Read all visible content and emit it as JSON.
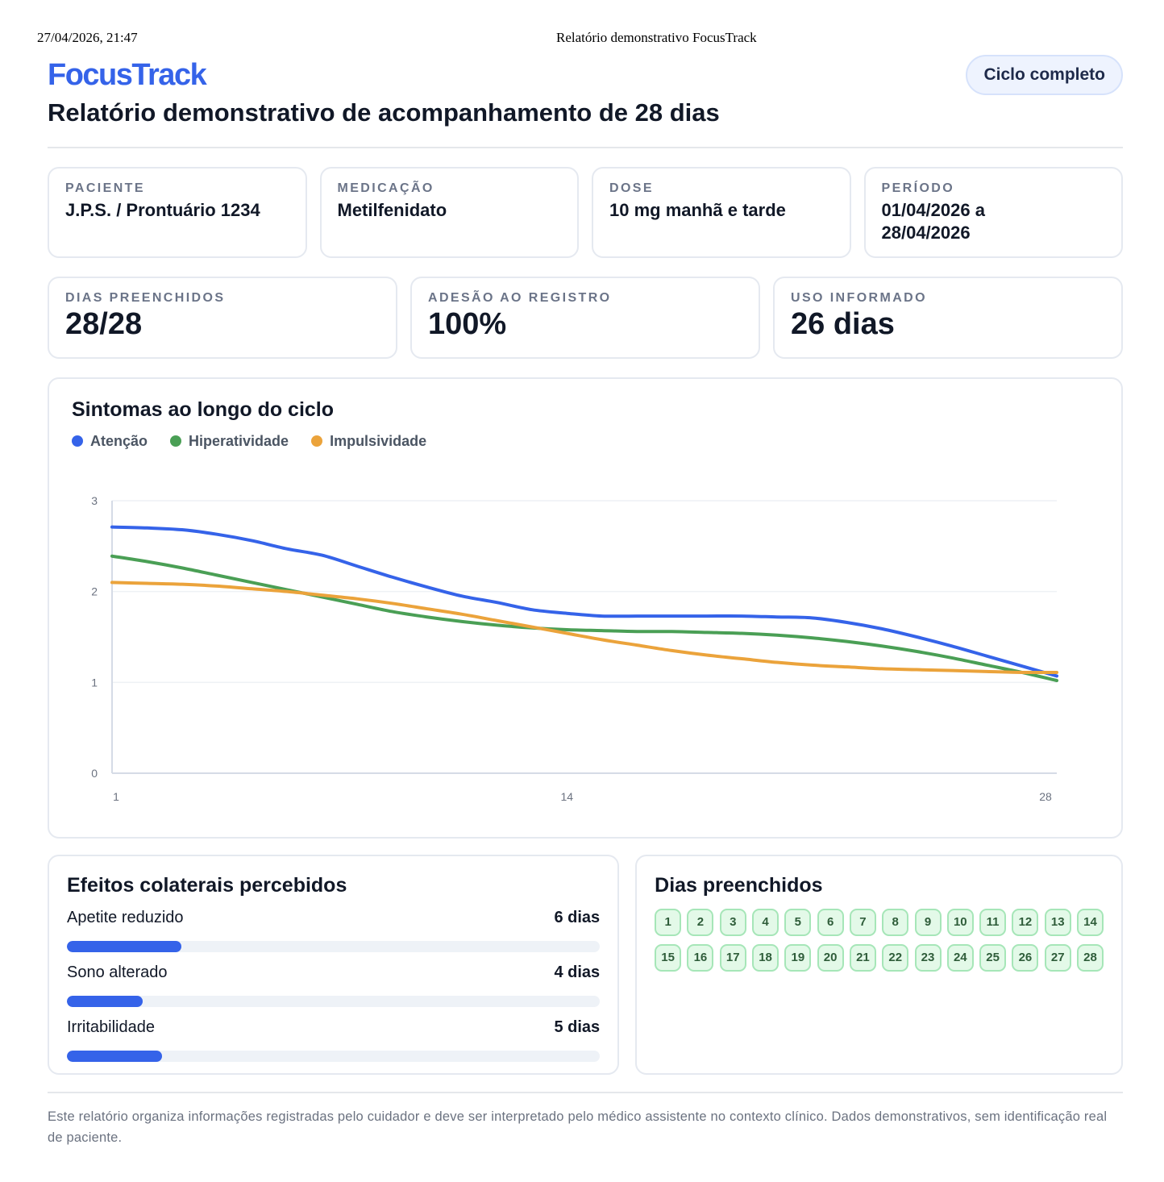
{
  "print_header": {
    "datetime": "27/04/2026, 21:47",
    "doc_title": "Relatório demonstrativo FocusTrack"
  },
  "brand": "FocusTrack",
  "title": "Relatório demonstrativo de acompanhamento de 28 dias",
  "status_badge": "Ciclo completo",
  "info": [
    {
      "label": "PACIENTE",
      "value": "J.P.S. / Prontuário 1234"
    },
    {
      "label": "MEDICAÇÃO",
      "value": "Metilfenidato"
    },
    {
      "label": "DOSE",
      "value": "10 mg manhã e tarde"
    },
    {
      "label": "PERÍODO",
      "value": "01/04/2026 a 28/04/2026"
    }
  ],
  "stats": [
    {
      "label": "DIAS PREENCHIDOS",
      "value": "28/28"
    },
    {
      "label": "ADESÃO AO REGISTRO",
      "value": "100%"
    },
    {
      "label": "USO INFORMADO",
      "value": "26 dias"
    }
  ],
  "chart_data": {
    "type": "line",
    "title": "Sintomas ao longo do ciclo",
    "legend_position": "top-left",
    "x": [
      1,
      2,
      3,
      4,
      5,
      6,
      7,
      8,
      9,
      10,
      11,
      12,
      13,
      14,
      15,
      16,
      17,
      18,
      19,
      20,
      21,
      22,
      23,
      24,
      25,
      26,
      27,
      28
    ],
    "xticks": [
      "1",
      "14",
      "28"
    ],
    "yticks": [
      "0",
      "1",
      "2",
      "3"
    ],
    "ylim": [
      0,
      3
    ],
    "grid": true,
    "series": [
      {
        "name": "Atenção",
        "color": "#3563e9",
        "values": [
          2.71,
          2.7,
          2.68,
          2.63,
          2.56,
          2.47,
          2.4,
          2.28,
          2.16,
          2.05,
          1.95,
          1.88,
          1.8,
          1.76,
          1.73,
          1.73,
          1.73,
          1.73,
          1.73,
          1.72,
          1.71,
          1.66,
          1.59,
          1.5,
          1.4,
          1.29,
          1.18,
          1.07
        ]
      },
      {
        "name": "Hiperatividade",
        "color": "#4a9f55",
        "values": [
          2.39,
          2.33,
          2.26,
          2.18,
          2.1,
          2.02,
          1.94,
          1.86,
          1.78,
          1.72,
          1.67,
          1.63,
          1.6,
          1.58,
          1.57,
          1.56,
          1.56,
          1.55,
          1.54,
          1.52,
          1.49,
          1.45,
          1.4,
          1.34,
          1.27,
          1.19,
          1.11,
          1.02
        ]
      },
      {
        "name": "Impulsividade",
        "color": "#eba33b",
        "values": [
          2.1,
          2.09,
          2.08,
          2.06,
          2.03,
          2.0,
          1.96,
          1.92,
          1.87,
          1.81,
          1.75,
          1.68,
          1.61,
          1.54,
          1.47,
          1.41,
          1.35,
          1.3,
          1.26,
          1.22,
          1.19,
          1.17,
          1.15,
          1.14,
          1.13,
          1.12,
          1.11,
          1.11
        ]
      }
    ]
  },
  "side_effects": {
    "title": "Efeitos colaterais percebidos",
    "total_days": 28,
    "items": [
      {
        "label": "Apetite reduzido",
        "value": "6 dias",
        "days": 6
      },
      {
        "label": "Sono alterado",
        "value": "4 dias",
        "days": 4
      },
      {
        "label": "Irritabilidade",
        "value": "5 dias",
        "days": 5
      }
    ]
  },
  "days_filled": {
    "title": "Dias preenchidos",
    "days": [
      "1",
      "2",
      "3",
      "4",
      "5",
      "6",
      "7",
      "8",
      "9",
      "10",
      "11",
      "12",
      "13",
      "14",
      "15",
      "16",
      "17",
      "18",
      "19",
      "20",
      "21",
      "22",
      "23",
      "24",
      "25",
      "26",
      "27",
      "28"
    ]
  },
  "footer": "Este relatório organiza informações registradas pelo cuidador e deve ser interpretado pelo médico assistente no contexto clínico. Dados demonstrativos, sem identificação real de paciente."
}
